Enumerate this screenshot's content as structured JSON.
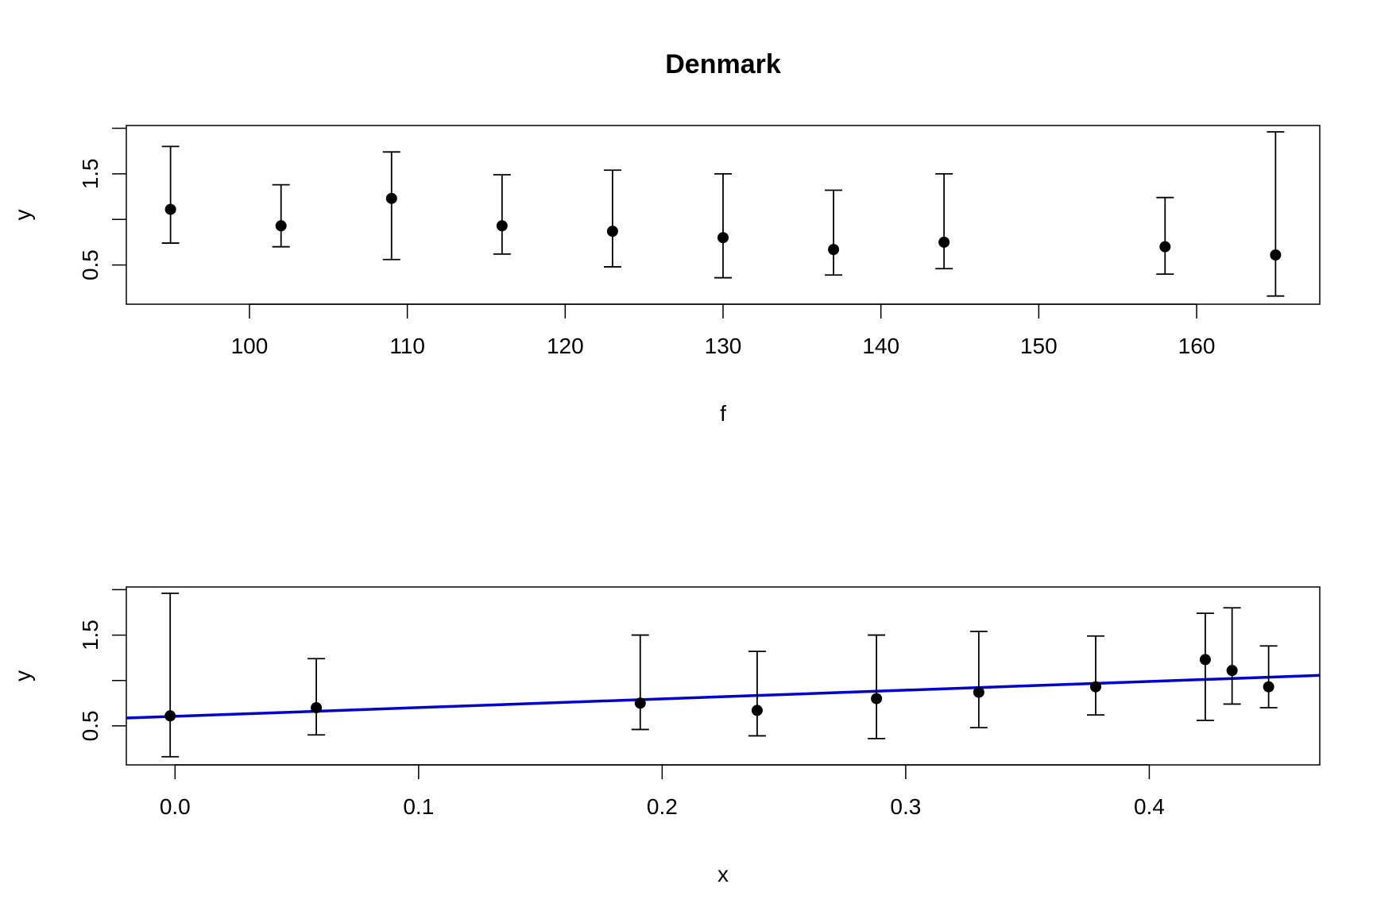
{
  "title": "Denmark",
  "colors": {
    "points": "#000000",
    "fit_line": "#0000CD",
    "axes": "#000000"
  },
  "chart_data": [
    {
      "type": "scatter",
      "title": "Denmark",
      "xlabel": "f",
      "ylabel": "y",
      "xlim": [
        92.2,
        167.8
      ],
      "ylim": [
        0.07,
        2.03
      ],
      "x_ticks": [
        100,
        110,
        120,
        130,
        140,
        150,
        160
      ],
      "x_tick_labels": [
        "100",
        "110",
        "120",
        "130",
        "140",
        "150",
        "160"
      ],
      "y_ticks": [
        0.5,
        1.0,
        1.5,
        2.0
      ],
      "y_tick_labels": [
        "0.5",
        "",
        "1.5",
        ""
      ],
      "grid": false,
      "error_bars": true,
      "points": [
        {
          "x": 95,
          "y": 1.11,
          "lo": 0.74,
          "hi": 1.8
        },
        {
          "x": 102,
          "y": 0.93,
          "lo": 0.7,
          "hi": 1.38
        },
        {
          "x": 109,
          "y": 1.23,
          "lo": 0.56,
          "hi": 1.74
        },
        {
          "x": 116,
          "y": 0.93,
          "lo": 0.62,
          "hi": 1.49
        },
        {
          "x": 123,
          "y": 0.87,
          "lo": 0.48,
          "hi": 1.54
        },
        {
          "x": 130,
          "y": 0.8,
          "lo": 0.36,
          "hi": 1.5
        },
        {
          "x": 137,
          "y": 0.67,
          "lo": 0.39,
          "hi": 1.32
        },
        {
          "x": 144,
          "y": 0.75,
          "lo": 0.46,
          "hi": 1.5
        },
        {
          "x": 158,
          "y": 0.7,
          "lo": 0.4,
          "hi": 1.24
        },
        {
          "x": 165,
          "y": 0.61,
          "lo": 0.16,
          "hi": 1.96
        }
      ]
    },
    {
      "type": "scatter",
      "title": "",
      "xlabel": "x",
      "ylabel": "y",
      "xlim": [
        -0.02,
        0.47
      ],
      "ylim": [
        0.07,
        2.03
      ],
      "x_ticks": [
        0.0,
        0.1,
        0.2,
        0.3,
        0.4
      ],
      "x_tick_labels": [
        "0.0",
        "0.1",
        "0.2",
        "0.3",
        "0.4"
      ],
      "y_ticks": [
        0.5,
        1.0,
        1.5,
        2.0
      ],
      "y_tick_labels": [
        "0.5",
        "",
        "1.5",
        ""
      ],
      "grid": false,
      "error_bars": true,
      "points": [
        {
          "x": -0.002,
          "y": 0.61,
          "lo": 0.16,
          "hi": 1.96
        },
        {
          "x": 0.058,
          "y": 0.7,
          "lo": 0.4,
          "hi": 1.24
        },
        {
          "x": 0.191,
          "y": 0.75,
          "lo": 0.46,
          "hi": 1.5
        },
        {
          "x": 0.239,
          "y": 0.67,
          "lo": 0.39,
          "hi": 1.32
        },
        {
          "x": 0.288,
          "y": 0.8,
          "lo": 0.36,
          "hi": 1.5
        },
        {
          "x": 0.33,
          "y": 0.87,
          "lo": 0.48,
          "hi": 1.54
        },
        {
          "x": 0.378,
          "y": 0.93,
          "lo": 0.62,
          "hi": 1.49
        },
        {
          "x": 0.423,
          "y": 1.23,
          "lo": 0.56,
          "hi": 1.74
        },
        {
          "x": 0.434,
          "y": 1.11,
          "lo": 0.74,
          "hi": 1.8
        },
        {
          "x": 0.449,
          "y": 0.93,
          "lo": 0.7,
          "hi": 1.38
        }
      ],
      "fit_line": {
        "intercept": 0.605,
        "slope": 0.96
      }
    }
  ]
}
